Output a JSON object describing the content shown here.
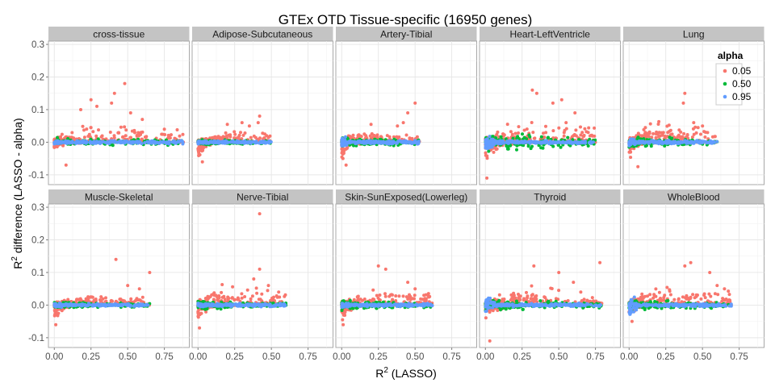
{
  "chart_data": {
    "type": "scatter",
    "title": "GTEx OTD Tissue-specific (16950 genes)",
    "xlabel_main": "R",
    "xlabel_sup": "2",
    "xlabel_rest": " (LASSO)",
    "ylabel_main": "R",
    "ylabel_sup": "2",
    "ylabel_rest": " difference (LASSO - alpha)",
    "xlim": [
      -0.04,
      0.92
    ],
    "ylim": [
      -0.13,
      0.31
    ],
    "x_ticks": [
      "0.00",
      "0.25",
      "0.50",
      "0.75"
    ],
    "x_tick_values": [
      0,
      0.25,
      0.5,
      0.75
    ],
    "y_ticks": [
      "-0.1",
      "0.0",
      "0.1",
      "0.2",
      "0.3"
    ],
    "y_tick_values": [
      -0.1,
      0.0,
      0.1,
      0.2,
      0.3
    ],
    "grid": true,
    "legend": {
      "title": "alpha",
      "placement": "top-right",
      "entries": [
        {
          "label": "0.05",
          "color": "#F8766D"
        },
        {
          "label": "0.50",
          "color": "#00BA38"
        },
        {
          "label": "0.95",
          "color": "#619CFF"
        }
      ]
    },
    "panels": [
      {
        "name": "cross-tissue",
        "xmax": 0.88,
        "red": {
          "ymax": 0.07,
          "ymin": -0.03
        },
        "green": {
          "ymax": 0.025,
          "ymin": -0.012
        },
        "blue": {
          "ymax": 0.006,
          "ymin": -0.006
        },
        "outliers": [
          [
            0.48,
            0.18
          ],
          [
            0.41,
            0.15
          ],
          [
            0.25,
            0.13
          ],
          [
            0.39,
            0.12
          ],
          [
            0.29,
            0.11
          ],
          [
            0.18,
            0.1
          ],
          [
            0.52,
            0.09
          ],
          [
            0.08,
            -0.07
          ],
          [
            0.6,
            0.07
          ],
          [
            0.75,
            0.04
          ]
        ]
      },
      {
        "name": "Adipose-Subcutaneous",
        "xmax": 0.5,
        "red": {
          "ymax": 0.05,
          "ymin": -0.06
        },
        "green": {
          "ymax": 0.015,
          "ymin": -0.015
        },
        "blue": {
          "ymax": 0.005,
          "ymin": -0.005
        },
        "outliers": [
          [
            0.42,
            0.08
          ],
          [
            0.41,
            0.06
          ],
          [
            0.3,
            0.06
          ],
          [
            0.03,
            -0.06
          ],
          [
            0.35,
            0.05
          ],
          [
            0.2,
            0.055
          ]
        ]
      },
      {
        "name": "Artery-Tibial",
        "xmax": 0.53,
        "red": {
          "ymax": 0.05,
          "ymin": -0.07
        },
        "green": {
          "ymax": 0.03,
          "ymin": -0.02
        },
        "blue": {
          "ymax": 0.006,
          "ymin": -0.03
        },
        "outliers": [
          [
            0.5,
            0.12
          ],
          [
            0.45,
            0.09
          ],
          [
            0.42,
            0.06
          ],
          [
            0.03,
            -0.07
          ],
          [
            0.38,
            0.05
          ],
          [
            0.2,
            0.055
          ]
        ]
      },
      {
        "name": "Heart-LeftVentricle",
        "xmax": 0.75,
        "red": {
          "ymax": 0.085,
          "ymin": -0.1
        },
        "green": {
          "ymax": 0.04,
          "ymin": -0.05
        },
        "blue": {
          "ymax": 0.006,
          "ymin": -0.04
        },
        "outliers": [
          [
            0.32,
            0.16
          ],
          [
            0.35,
            0.15
          ],
          [
            0.52,
            0.13
          ],
          [
            0.46,
            0.12
          ],
          [
            0.61,
            0.09
          ],
          [
            0.01,
            -0.11
          ],
          [
            0.66,
            0.03
          ],
          [
            0.55,
            0.06
          ]
        ]
      },
      {
        "name": "Lung",
        "xmax": 0.6,
        "red": {
          "ymax": 0.075,
          "ymin": -0.065
        },
        "green": {
          "ymax": 0.03,
          "ymin": -0.02
        },
        "blue": {
          "ymax": 0.006,
          "ymin": -0.02
        },
        "outliers": [
          [
            0.38,
            0.15
          ],
          [
            0.37,
            0.12
          ],
          [
            0.5,
            0.05
          ],
          [
            0.06,
            -0.075
          ],
          [
            0.44,
            0.06
          ],
          [
            0.47,
            0.045
          ]
        ]
      },
      {
        "name": "Muscle-Skeletal",
        "xmax": 0.65,
        "red": {
          "ymax": 0.045,
          "ymin": -0.05
        },
        "green": {
          "ymax": 0.015,
          "ymin": -0.02
        },
        "blue": {
          "ymax": 0.005,
          "ymin": -0.01
        },
        "outliers": [
          [
            0.42,
            0.14
          ],
          [
            0.65,
            0.1
          ],
          [
            0.5,
            0.06
          ],
          [
            0.01,
            -0.06
          ],
          [
            0.58,
            0.05
          ]
        ]
      },
      {
        "name": "Nerve-Tibial",
        "xmax": 0.6,
        "red": {
          "ymax": 0.085,
          "ymin": -0.065
        },
        "green": {
          "ymax": 0.025,
          "ymin": -0.02
        },
        "blue": {
          "ymax": 0.006,
          "ymin": -0.01
        },
        "outliers": [
          [
            0.42,
            0.28
          ],
          [
            0.42,
            0.11
          ],
          [
            0.48,
            0.06
          ],
          [
            0.01,
            -0.07
          ],
          [
            0.38,
            0.08
          ],
          [
            0.55,
            0.04
          ]
        ]
      },
      {
        "name": "Skin-SunExposed(Lowerleg)",
        "xmax": 0.62,
        "red": {
          "ymax": 0.07,
          "ymin": -0.055
        },
        "green": {
          "ymax": 0.025,
          "ymin": -0.02
        },
        "blue": {
          "ymax": 0.006,
          "ymin": -0.01
        },
        "outliers": [
          [
            0.25,
            0.12
          ],
          [
            0.3,
            0.11
          ],
          [
            0.45,
            0.07
          ],
          [
            0.01,
            -0.06
          ],
          [
            0.5,
            0.05
          ],
          [
            0.56,
            0.03
          ]
        ]
      },
      {
        "name": "Thyroid",
        "xmax": 0.8,
        "red": {
          "ymax": 0.075,
          "ymin": -0.055
        },
        "green": {
          "ymax": 0.025,
          "ymin": -0.03
        },
        "blue": {
          "ymax": 0.006,
          "ymin": -0.06
        },
        "outliers": [
          [
            0.78,
            0.13
          ],
          [
            0.33,
            0.12
          ],
          [
            0.5,
            0.1
          ],
          [
            0.03,
            -0.11
          ],
          [
            0.6,
            0.07
          ],
          [
            0.65,
            0.04
          ]
        ]
      },
      {
        "name": "WholeBlood",
        "xmax": 0.7,
        "red": {
          "ymax": 0.075,
          "ymin": -0.04
        },
        "green": {
          "ymax": 0.03,
          "ymin": -0.02
        },
        "blue": {
          "ymax": 0.006,
          "ymin": -0.055
        },
        "outliers": [
          [
            0.42,
            0.13
          ],
          [
            0.38,
            0.12
          ],
          [
            0.55,
            0.1
          ],
          [
            0.02,
            -0.05
          ],
          [
            0.65,
            0.05
          ],
          [
            0.6,
            0.06
          ]
        ]
      }
    ]
  }
}
